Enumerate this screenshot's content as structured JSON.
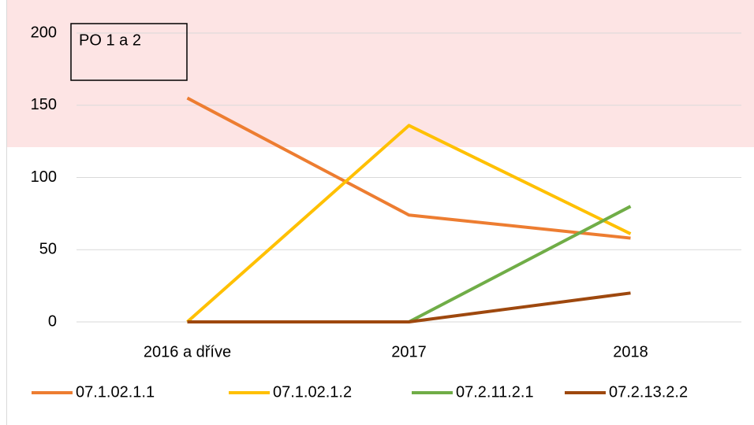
{
  "chart_data": {
    "type": "line",
    "annotation": "PO 1 a 2",
    "categories": [
      "2016 a dříve",
      "2017",
      "2018"
    ],
    "series": [
      {
        "name": "07.1.02.1.1",
        "color": "#ED7D31",
        "values": [
          155,
          74,
          58
        ]
      },
      {
        "name": "07.1.02.1.2",
        "color": "#FFC000",
        "values": [
          0,
          136,
          61
        ]
      },
      {
        "name": "07.2.11.2.1",
        "color": "#70AD47",
        "values": [
          0,
          0,
          80
        ]
      },
      {
        "name": "07.2.13.2.2",
        "color": "#9E480E",
        "values": [
          0,
          0,
          20
        ]
      }
    ],
    "ylim": [
      0,
      200
    ],
    "yticks": [
      0,
      50,
      100,
      150,
      200
    ],
    "grid": true,
    "legend": "bottom"
  }
}
